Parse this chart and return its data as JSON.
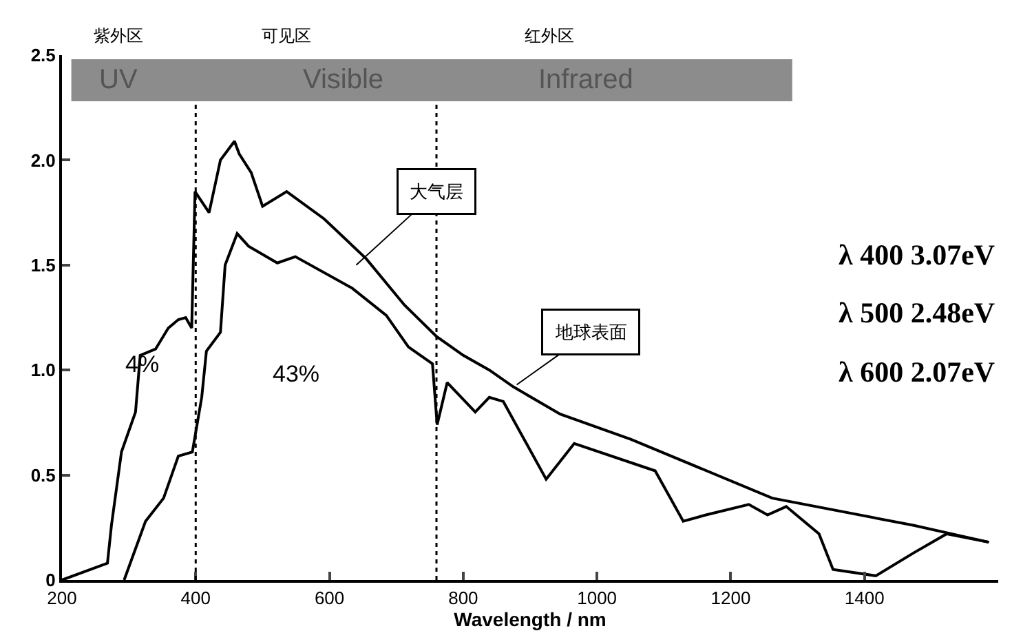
{
  "chart_data": {
    "type": "line",
    "xlabel": "Wavelength / nm",
    "xlim": [
      200,
      1600
    ],
    "xticks": [
      200,
      400,
      600,
      800,
      1000,
      1200,
      1400
    ],
    "ylim": [
      0,
      2.5
    ],
    "yticks": [
      0,
      {
        "value": 0.5,
        "label": "0.5"
      },
      {
        "value": 1,
        "label": "1.0"
      },
      {
        "value": 1.5,
        "label": "1.5"
      },
      {
        "value": 2,
        "label": "2.0"
      },
      {
        "value": 2.5,
        "label": "2.5"
      }
    ],
    "grid": false,
    "legend": false,
    "marker": "none",
    "line_style": "solid",
    "series": [
      {
        "name": "大气层",
        "color": "#000000",
        "x": [
          200,
          268,
          274,
          289,
          310,
          317,
          340,
          359,
          374,
          385,
          394,
          399,
          420,
          437,
          458,
          465,
          483,
          500,
          536,
          592,
          655,
          712,
          760,
          800,
          839,
          875,
          945,
          1051,
          1262,
          1474,
          1586
        ],
        "values": [
          0,
          0.08,
          0.26,
          0.61,
          0.8,
          1.07,
          1.1,
          1.2,
          1.24,
          1.25,
          1.2,
          1.85,
          1.75,
          2.0,
          2.09,
          2.03,
          1.94,
          1.78,
          1.85,
          1.72,
          1.53,
          1.31,
          1.16,
          1.07,
          1.0,
          0.92,
          0.79,
          0.67,
          0.39,
          0.26,
          0.18
        ]
      },
      {
        "name": "地球表面",
        "color": "#000000",
        "x": [
          293,
          325,
          352,
          374,
          395,
          409,
          416,
          437,
          444,
          462,
          479,
          522,
          549,
          634,
          685,
          718,
          754,
          761,
          776,
          818,
          839,
          860,
          924,
          966,
          1087,
          1129,
          1163,
          1227,
          1255,
          1283,
          1332,
          1353,
          1417,
          1474,
          1523,
          1586
        ],
        "values": [
          0,
          0.28,
          0.39,
          0.59,
          0.61,
          0.87,
          1.09,
          1.18,
          1.5,
          1.65,
          1.59,
          1.51,
          1.54,
          1.39,
          1.26,
          1.11,
          1.03,
          0.74,
          0.94,
          0.8,
          0.87,
          0.85,
          0.48,
          0.65,
          0.52,
          0.28,
          0.31,
          0.36,
          0.31,
          0.35,
          0.22,
          0.05,
          0.02,
          0.13,
          0.22,
          0.18
        ]
      }
    ],
    "ref_lines": [
      {
        "axis": "x",
        "value": 400,
        "line_style": "dotted",
        "color": "#000000"
      },
      {
        "axis": "x",
        "value": 760,
        "line_style": "dotted",
        "color": "#000000"
      }
    ],
    "bands": [
      {
        "axis": "y",
        "from": 2.28,
        "to": 2.48,
        "color": "#8c8c8c"
      }
    ],
    "annotations": [
      "紫外区",
      "可见区",
      "红外区",
      "UV",
      "Visible",
      "Infrared",
      "4%",
      "43%",
      "λ 400 3.07eV",
      "λ 500 2.48eV",
      "λ 600 2.07eV"
    ]
  }
}
